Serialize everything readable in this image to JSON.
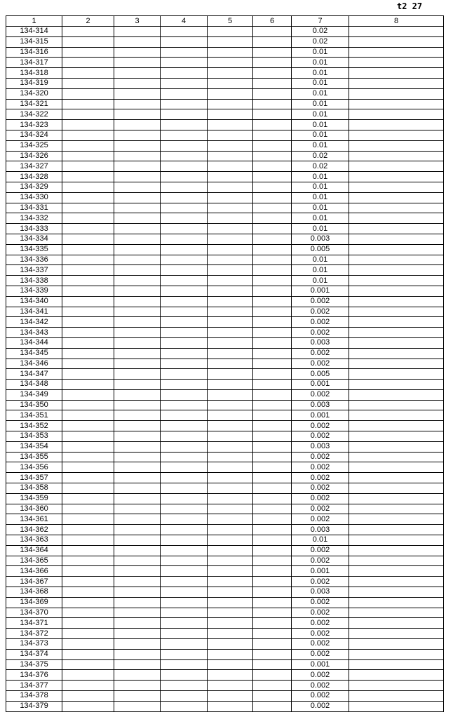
{
  "page_label": "t2 27",
  "headers": [
    "1",
    "2",
    "3",
    "4",
    "5",
    "6",
    "7",
    "8"
  ],
  "rows": [
    [
      "134-314",
      "0.02"
    ],
    [
      "134-315",
      "0.02"
    ],
    [
      "134-316",
      "0.01"
    ],
    [
      "134-317",
      "0.01"
    ],
    [
      "134-318",
      "0.01"
    ],
    [
      "134-319",
      "0.01"
    ],
    [
      "134-320",
      "0.01"
    ],
    [
      "134-321",
      "0.01"
    ],
    [
      "134-322",
      "0.01"
    ],
    [
      "134-323",
      "0.01"
    ],
    [
      "134-324",
      "0.01"
    ],
    [
      "134-325",
      "0.01"
    ],
    [
      "134-326",
      "0.02"
    ],
    [
      "134-327",
      "0.02"
    ],
    [
      "134-328",
      "0.01"
    ],
    [
      "134-329",
      "0.01"
    ],
    [
      "134-330",
      "0.01"
    ],
    [
      "134-331",
      "0.01"
    ],
    [
      "134-332",
      "0.01"
    ],
    [
      "134-333",
      "0.01"
    ],
    [
      "134-334",
      "0.003"
    ],
    [
      "134-335",
      "0.005"
    ],
    [
      "134-336",
      "0.01"
    ],
    [
      "134-337",
      "0.01"
    ],
    [
      "134-338",
      "0.01"
    ],
    [
      "134-339",
      "0.001"
    ],
    [
      "134-340",
      "0.002"
    ],
    [
      "134-341",
      "0.002"
    ],
    [
      "134-342",
      "0.002"
    ],
    [
      "134-343",
      "0.002"
    ],
    [
      "134-344",
      "0.003"
    ],
    [
      "134-345",
      "0.002"
    ],
    [
      "134-346",
      "0.002"
    ],
    [
      "134-347",
      "0.005"
    ],
    [
      "134-348",
      "0.001"
    ],
    [
      "134-349",
      "0.002"
    ],
    [
      "134-350",
      "0.003"
    ],
    [
      "134-351",
      "0.001"
    ],
    [
      "134-352",
      "0.002"
    ],
    [
      "134-353",
      "0.002"
    ],
    [
      "134-354",
      "0.003"
    ],
    [
      "134-355",
      "0.002"
    ],
    [
      "134-356",
      "0.002"
    ],
    [
      "134-357",
      "0.002"
    ],
    [
      "134-358",
      "0.002"
    ],
    [
      "134-359",
      "0.002"
    ],
    [
      "134-360",
      "0.002"
    ],
    [
      "134-361",
      "0.002"
    ],
    [
      "134-362",
      "0.003"
    ],
    [
      "134-363",
      "0.01"
    ],
    [
      "134-364",
      "0.002"
    ],
    [
      "134-365",
      "0.002"
    ],
    [
      "134-366",
      "0.001"
    ],
    [
      "134-367",
      "0.002"
    ],
    [
      "134-368",
      "0.003"
    ],
    [
      "134-369",
      "0.002"
    ],
    [
      "134-370",
      "0.002"
    ],
    [
      "134-371",
      "0.002"
    ],
    [
      "134-372",
      "0.002"
    ],
    [
      "134-373",
      "0.002"
    ],
    [
      "134-374",
      "0.002"
    ],
    [
      "134-375",
      "0.001"
    ],
    [
      "134-376",
      "0.002"
    ],
    [
      "134-377",
      "0.002"
    ],
    [
      "134-378",
      "0.002"
    ],
    [
      "134-379",
      "0.002"
    ]
  ]
}
